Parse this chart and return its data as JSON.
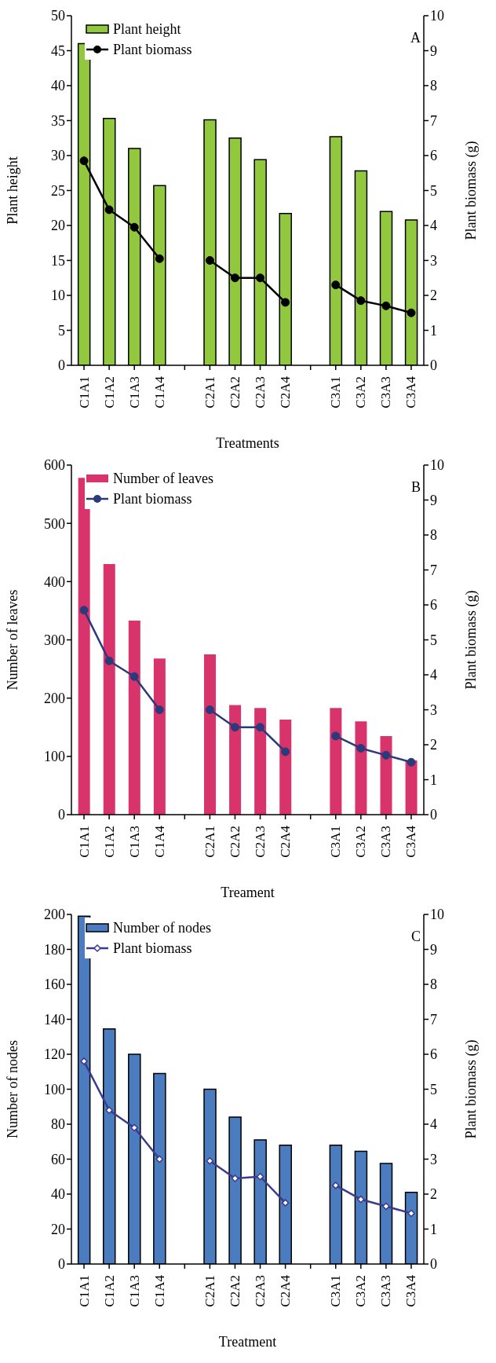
{
  "chart_data": [
    {
      "type": "bar",
      "categories": [
        "C1A1",
        "C1A2",
        "C1A3",
        "C1A4",
        null,
        "C2A1",
        "C2A2",
        "C2A3",
        "C2A4",
        null,
        "C3A1",
        "C3A2",
        "C3A3",
        "C3A4"
      ],
      "xlabel": "Treatments",
      "ylabel": "Plant height",
      "y2label": "Plant biomass (g)",
      "annotations": [
        "A"
      ],
      "series": [
        {
          "name": "Plant height",
          "color": "#92c83e",
          "values": [
            46,
            35.3,
            31,
            25.7,
            null,
            35.1,
            32.5,
            29.4,
            21.7,
            null,
            32.7,
            27.8,
            22,
            20.8
          ]
        },
        {
          "name": "Plant biomass",
          "type": "line",
          "axis": "y2",
          "color": "#000000",
          "values": [
            5.85,
            4.45,
            3.95,
            3.05,
            null,
            3.0,
            2.5,
            2.5,
            1.8,
            null,
            2.3,
            1.85,
            1.7,
            1.5
          ]
        }
      ],
      "ylim": [
        0,
        50
      ],
      "yticks": [
        0,
        5,
        10,
        15,
        20,
        25,
        30,
        35,
        40,
        45,
        50
      ],
      "y2lim": [
        0,
        10
      ],
      "y2ticks": [
        0,
        1,
        2,
        3,
        4,
        5,
        6,
        7,
        8,
        9,
        10
      ],
      "legend": "top left",
      "marker": "circle",
      "grid": false
    },
    {
      "type": "bar",
      "categories": [
        "C1A1",
        "C1A2",
        "C1A3",
        "C1A4",
        null,
        "C2A1",
        "C2A2",
        "C2A3",
        "C2A4",
        null,
        "C3A1",
        "C3A2",
        "C3A3",
        "C3A4"
      ],
      "xlabel": "Treament",
      "ylabel": "Number of leaves",
      "y2label": "Plant biomass (g)",
      "annotations": [
        "B"
      ],
      "series": [
        {
          "name": "Number of leaves",
          "color": "#d9336b",
          "values": [
            578,
            430,
            333,
            268,
            null,
            275,
            188,
            183,
            163,
            null,
            183,
            160,
            135,
            93
          ]
        },
        {
          "name": "Plant biomass",
          "type": "line",
          "axis": "y2",
          "color": "#2b3a7a",
          "values": [
            5.85,
            4.4,
            3.95,
            3.0,
            null,
            3.0,
            2.5,
            2.5,
            1.8,
            null,
            2.25,
            1.9,
            1.7,
            1.5
          ]
        }
      ],
      "ylim": [
        0,
        600
      ],
      "yticks": [
        0,
        100,
        200,
        300,
        400,
        500,
        600
      ],
      "y2lim": [
        0,
        10
      ],
      "y2ticks": [
        0,
        1,
        2,
        3,
        4,
        5,
        6,
        7,
        8,
        9,
        10
      ],
      "legend": "top left",
      "marker": "circle",
      "grid": false
    },
    {
      "type": "bar",
      "categories": [
        "C1A1",
        "C1A2",
        "C1A3",
        "C1A4",
        null,
        "C2A1",
        "C2A2",
        "C2A3",
        "C2A4",
        null,
        "C3A1",
        "C3A2",
        "C3A3",
        "C3A4"
      ],
      "xlabel": "Treatment",
      "ylabel": "Number of nodes",
      "y2label": "Plant biomass (g)",
      "annotations": [
        "C"
      ],
      "series": [
        {
          "name": "Number of nodes",
          "color": "#4a7cbf",
          "values": [
            199,
            134.5,
            120,
            109,
            null,
            100,
            84,
            71,
            68,
            null,
            68,
            64.5,
            57.5,
            41
          ]
        },
        {
          "name": "Plant biomass",
          "type": "line",
          "axis": "y2",
          "color": "#3b3b8f",
          "values": [
            5.8,
            4.4,
            3.9,
            3.0,
            null,
            2.95,
            2.45,
            2.5,
            1.75,
            null,
            2.25,
            1.85,
            1.65,
            1.45
          ]
        }
      ],
      "ylim": [
        0,
        200
      ],
      "yticks": [
        0,
        20,
        40,
        60,
        80,
        100,
        120,
        140,
        160,
        180,
        200
      ],
      "y2lim": [
        0,
        10
      ],
      "y2ticks": [
        0,
        1,
        2,
        3,
        4,
        5,
        6,
        7,
        8,
        9,
        10
      ],
      "legend": "top left",
      "marker": "diamond",
      "grid": false
    }
  ]
}
